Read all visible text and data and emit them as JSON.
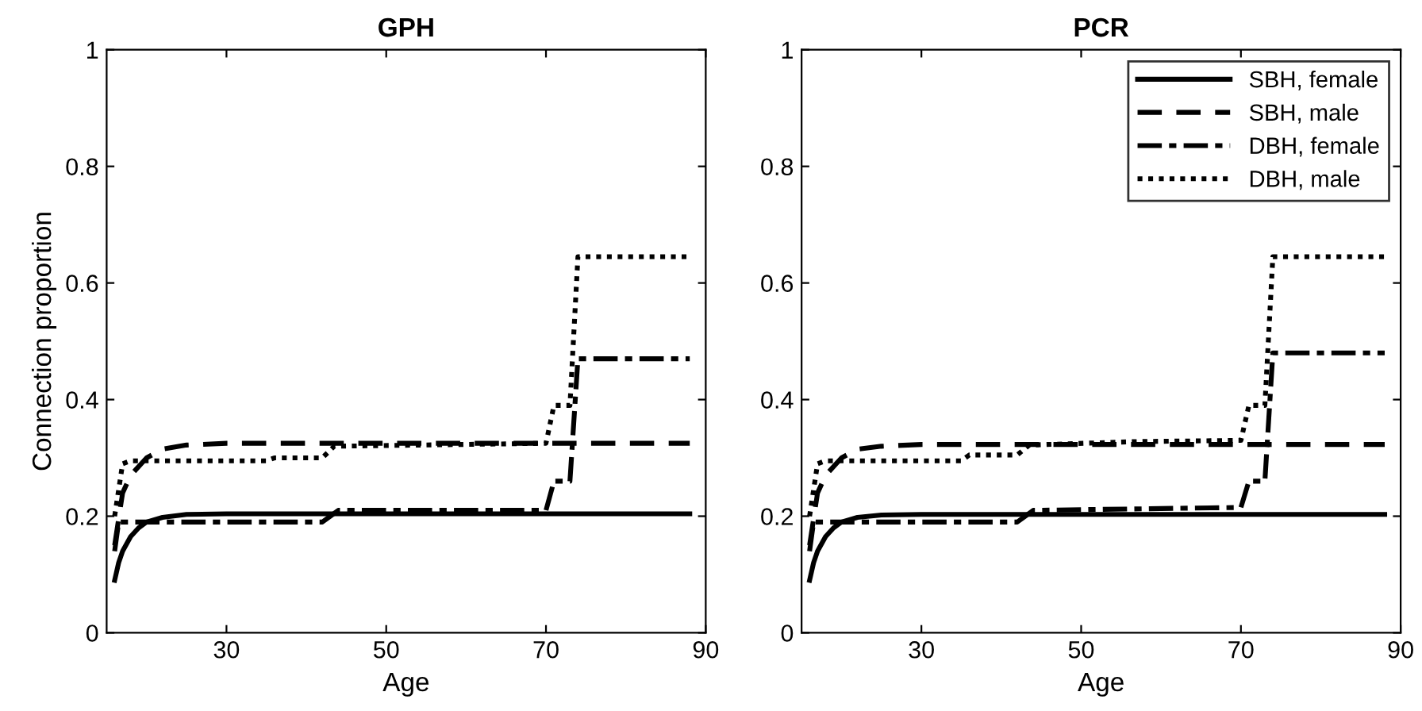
{
  "chart_data": [
    {
      "type": "line",
      "title": "GPH",
      "xlabel": "Age",
      "ylabel": "Connection proportion",
      "xlim": [
        15,
        90
      ],
      "ylim": [
        0,
        1
      ],
      "xticks": [
        30,
        50,
        70,
        90
      ],
      "yticks": [
        0,
        0.2,
        0.4,
        0.6,
        0.8,
        1
      ],
      "grid": false,
      "legend": false,
      "series": [
        {
          "color": "#000000",
          "line_style": "solid",
          "x": [
            16,
            16.5,
            17,
            18,
            19,
            20,
            22,
            25,
            30,
            88
          ],
          "values": [
            0.09,
            0.12,
            0.14,
            0.165,
            0.18,
            0.19,
            0.198,
            0.203,
            0.204,
            0.204
          ]
        },
        {
          "color": "#000000",
          "line_style": "dashed",
          "x": [
            16,
            17,
            18,
            20,
            22,
            25,
            30,
            88
          ],
          "values": [
            0.15,
            0.24,
            0.27,
            0.3,
            0.315,
            0.322,
            0.325,
            0.325
          ]
        },
        {
          "color": "#000000",
          "line_style": "dashdot",
          "x": [
            16,
            16.5,
            17,
            42,
            43,
            44,
            70,
            71,
            73,
            74,
            88
          ],
          "values": [
            0.14,
            0.19,
            0.19,
            0.19,
            0.2,
            0.21,
            0.21,
            0.26,
            0.26,
            0.47,
            0.47
          ]
        },
        {
          "color": "#000000",
          "line_style": "dotted",
          "x": [
            16,
            17,
            18,
            35,
            36,
            42,
            43.5,
            70,
            71,
            73,
            74,
            88
          ],
          "values": [
            0.2,
            0.29,
            0.295,
            0.295,
            0.3,
            0.3,
            0.32,
            0.325,
            0.39,
            0.39,
            0.645,
            0.645
          ]
        }
      ]
    },
    {
      "type": "line",
      "title": "PCR",
      "xlabel": "Age",
      "xlim": [
        15,
        90
      ],
      "ylim": [
        0,
        1
      ],
      "xticks": [
        30,
        50,
        70,
        90
      ],
      "yticks": [
        0,
        0.2,
        0.4,
        0.6,
        0.8,
        1
      ],
      "grid": false,
      "legend": "top right",
      "series": [
        {
          "name": "SBH, female",
          "color": "#000000",
          "line_style": "solid",
          "x": [
            16,
            16.5,
            17,
            18,
            19,
            20,
            22,
            25,
            30,
            88
          ],
          "values": [
            0.09,
            0.12,
            0.14,
            0.165,
            0.18,
            0.19,
            0.198,
            0.202,
            0.203,
            0.203
          ]
        },
        {
          "name": "SBH, male",
          "color": "#000000",
          "line_style": "dashed",
          "x": [
            16,
            17,
            18,
            20,
            22,
            25,
            30,
            88
          ],
          "values": [
            0.15,
            0.24,
            0.27,
            0.3,
            0.315,
            0.32,
            0.323,
            0.323
          ]
        },
        {
          "name": "DBH, female",
          "color": "#000000",
          "line_style": "dashdot",
          "x": [
            16,
            16.5,
            17,
            42,
            43,
            44,
            70,
            71,
            73,
            74,
            88
          ],
          "values": [
            0.14,
            0.19,
            0.19,
            0.19,
            0.2,
            0.21,
            0.215,
            0.26,
            0.26,
            0.48,
            0.48
          ]
        },
        {
          "name": "DBH, male",
          "color": "#000000",
          "line_style": "dotted",
          "x": [
            16,
            17,
            18,
            35,
            36,
            42,
            43.5,
            57,
            70,
            71,
            73,
            74,
            88
          ],
          "values": [
            0.2,
            0.29,
            0.295,
            0.295,
            0.305,
            0.305,
            0.322,
            0.328,
            0.33,
            0.39,
            0.39,
            0.645,
            0.645
          ]
        }
      ]
    }
  ]
}
